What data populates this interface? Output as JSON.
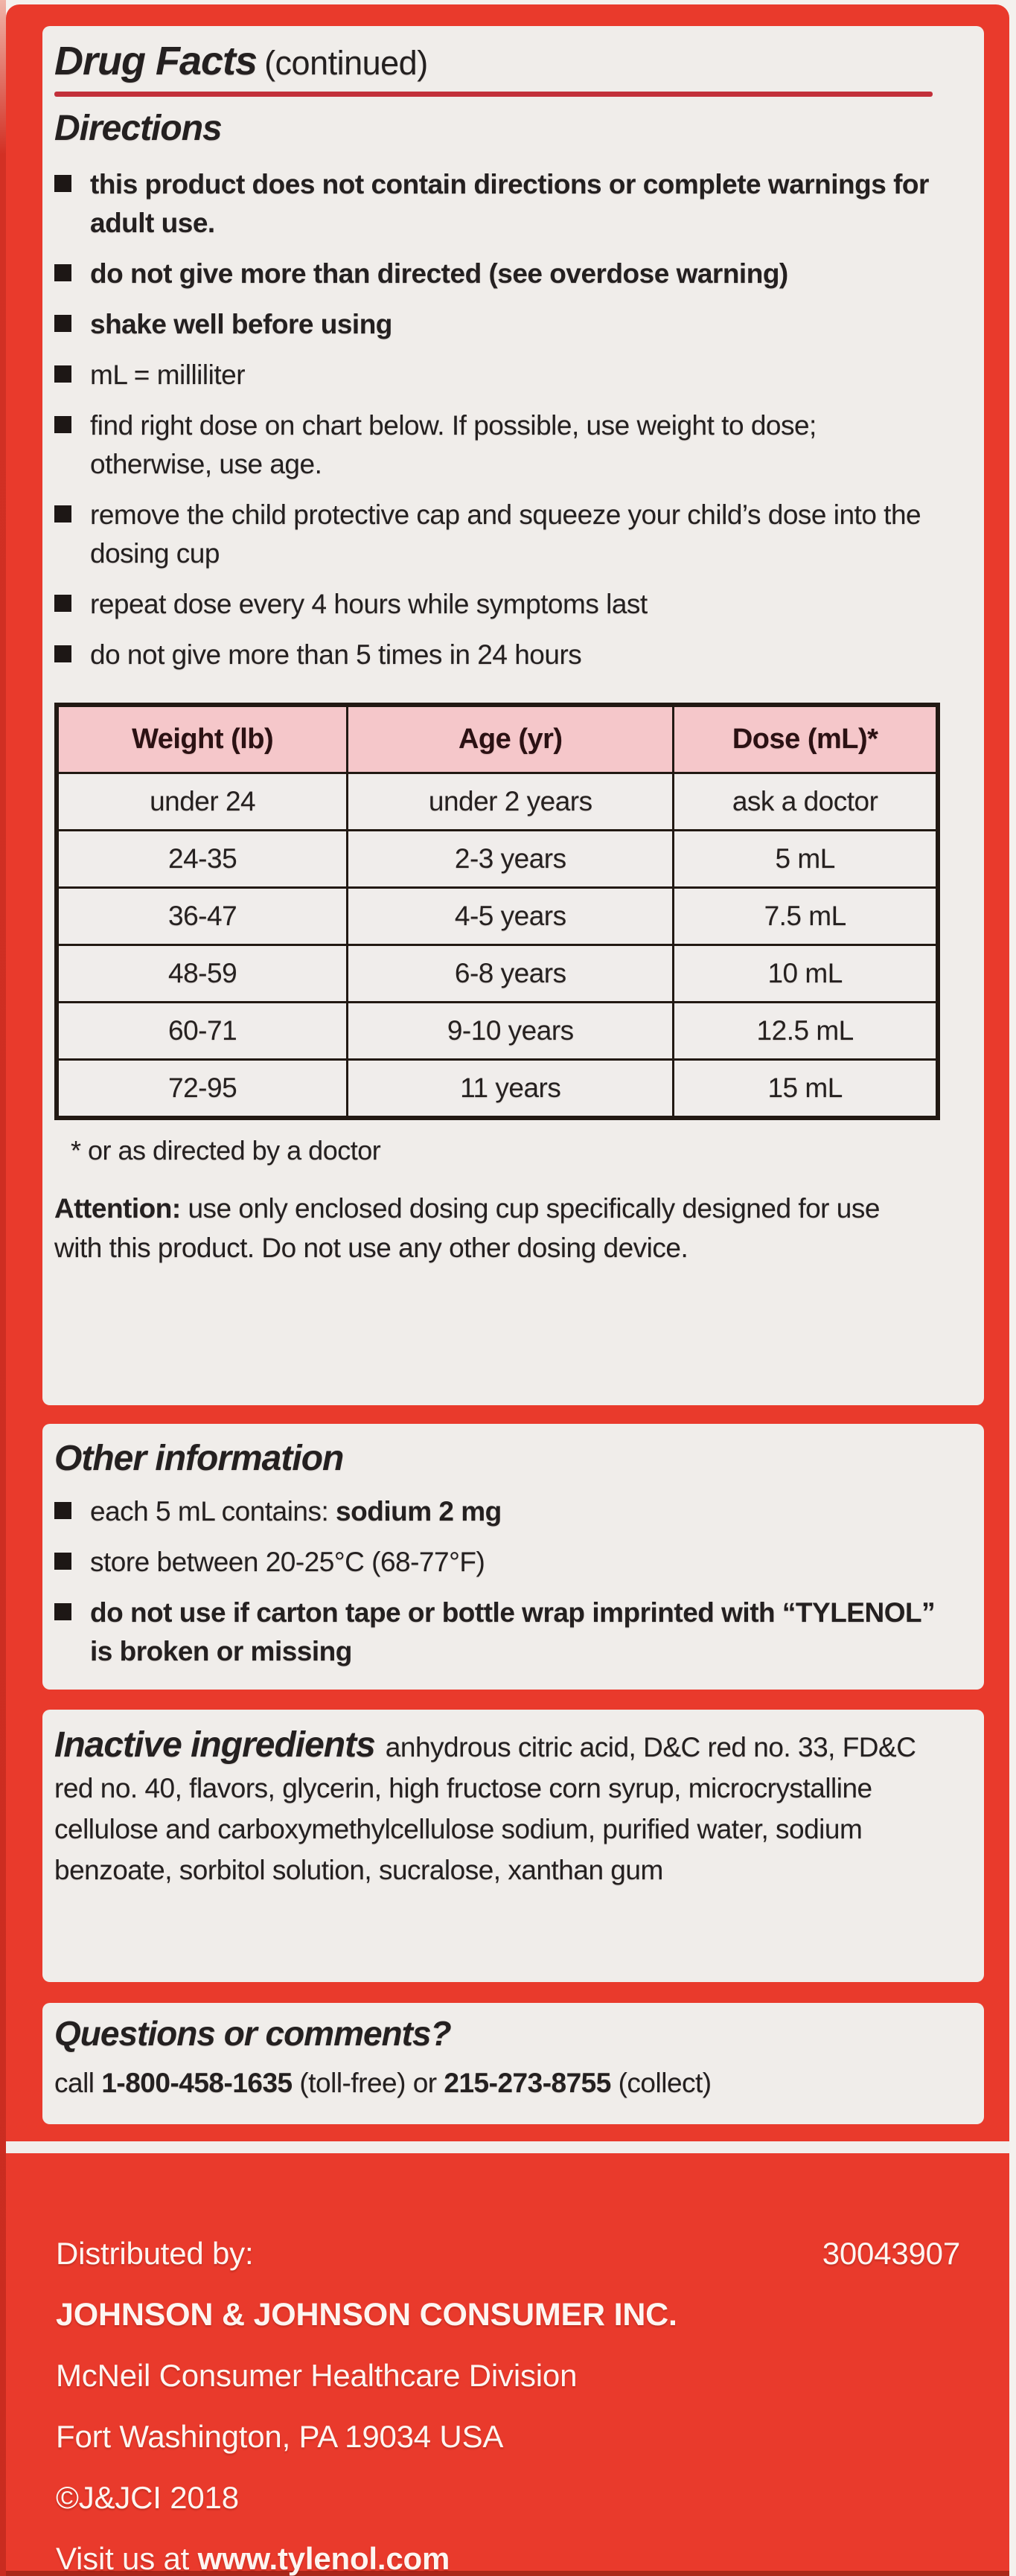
{
  "colors": {
    "box_red": "#e93a2c",
    "panel_offwhite": "#f0edea",
    "table_header_pink": "#f5c7ca",
    "divider_red": "#c2303a",
    "table_border_black": "#221913",
    "footer_text_white": "#fdf5f1"
  },
  "title": {
    "main": "Drug Facts",
    "suffix": "(continued)"
  },
  "directions": {
    "heading": "Directions",
    "bullets": [
      [
        {
          "t": "this product does not contain directions or complete warnings for adult use.",
          "b": true
        }
      ],
      [
        {
          "t": "do not give more than directed (see overdose warning)",
          "b": true
        }
      ],
      [
        {
          "t": "shake well before using",
          "b": true
        }
      ],
      [
        {
          "t": "mL = milliliter",
          "b": false
        }
      ],
      [
        {
          "t": "find right dose on chart below. If possible, use weight to dose; otherwise, use age.",
          "b": false
        }
      ],
      [
        {
          "t": "remove the child protective cap and squeeze your child’s dose into the dosing cup",
          "b": false
        }
      ],
      [
        {
          "t": "repeat dose every 4 hours while symptoms last",
          "b": false
        }
      ],
      [
        {
          "t": "do not give more than 5 times in 24 hours",
          "b": false
        }
      ]
    ]
  },
  "chart_data": {
    "type": "table",
    "title": "Dosing chart",
    "headers": [
      "Weight (lb)",
      "Age (yr)",
      "Dose (mL)*"
    ],
    "rows": [
      [
        "under 24",
        "under 2 years",
        "ask a doctor"
      ],
      [
        "24-35",
        "2-3 years",
        "5 mL"
      ],
      [
        "36-47",
        "4-5 years",
        "7.5 mL"
      ],
      [
        "48-59",
        "6-8 years",
        "10 mL"
      ],
      [
        "60-71",
        "9-10 years",
        "12.5 mL"
      ],
      [
        "72-95",
        "11 years",
        "15 mL"
      ]
    ]
  },
  "footnote": "* or as directed by a doctor",
  "attention": [
    {
      "t": "Attention:",
      "b": true
    },
    {
      "t": " use only enclosed dosing cup specifically designed for use with this product. Do not use any other dosing device.",
      "b": false
    }
  ],
  "other_information": {
    "heading": "Other information",
    "bullets": [
      [
        {
          "t": "each 5 mL contains: ",
          "b": false
        },
        {
          "t": "sodium 2 mg",
          "b": true
        }
      ],
      [
        {
          "t": "store between 20-25°C (68-77°F)",
          "b": false
        }
      ],
      [
        {
          "t": "do not use if carton tape or bottle wrap imprinted with “TYLENOL” is broken or missing",
          "b": true
        }
      ]
    ]
  },
  "inactive_ingredients": {
    "heading": "Inactive ingredients",
    "text": "anhydrous citric acid, D&C red no. 33, FD&C red no. 40, flavors, glycerin, high fructose corn syrup, microcrystalline cellulose and carboxymethylcellulose sodium, purified water, sodium benzoate, sorbitol solution, sucralose, xanthan gum"
  },
  "questions": {
    "heading": "Questions or comments?",
    "line": [
      {
        "t": "call ",
        "b": false
      },
      {
        "t": "1-800-458-1635",
        "b": true
      },
      {
        "t": " (toll-free) or ",
        "b": false
      },
      {
        "t": "215-273-8755",
        "b": true
      },
      {
        "t": " (collect)",
        "b": false
      }
    ]
  },
  "footer": {
    "distributed_by": "Distributed by:",
    "code": "30043907",
    "company": "JOHNSON & JOHNSON CONSUMER INC.",
    "division": "McNeil Consumer Healthcare Division",
    "address": "Fort Washington, PA 19034 USA",
    "copyright": "©J&JCI 2018",
    "visit": [
      {
        "t": "Visit us at ",
        "b": false
      },
      {
        "t": "www.tylenol.com",
        "b": true
      }
    ]
  }
}
